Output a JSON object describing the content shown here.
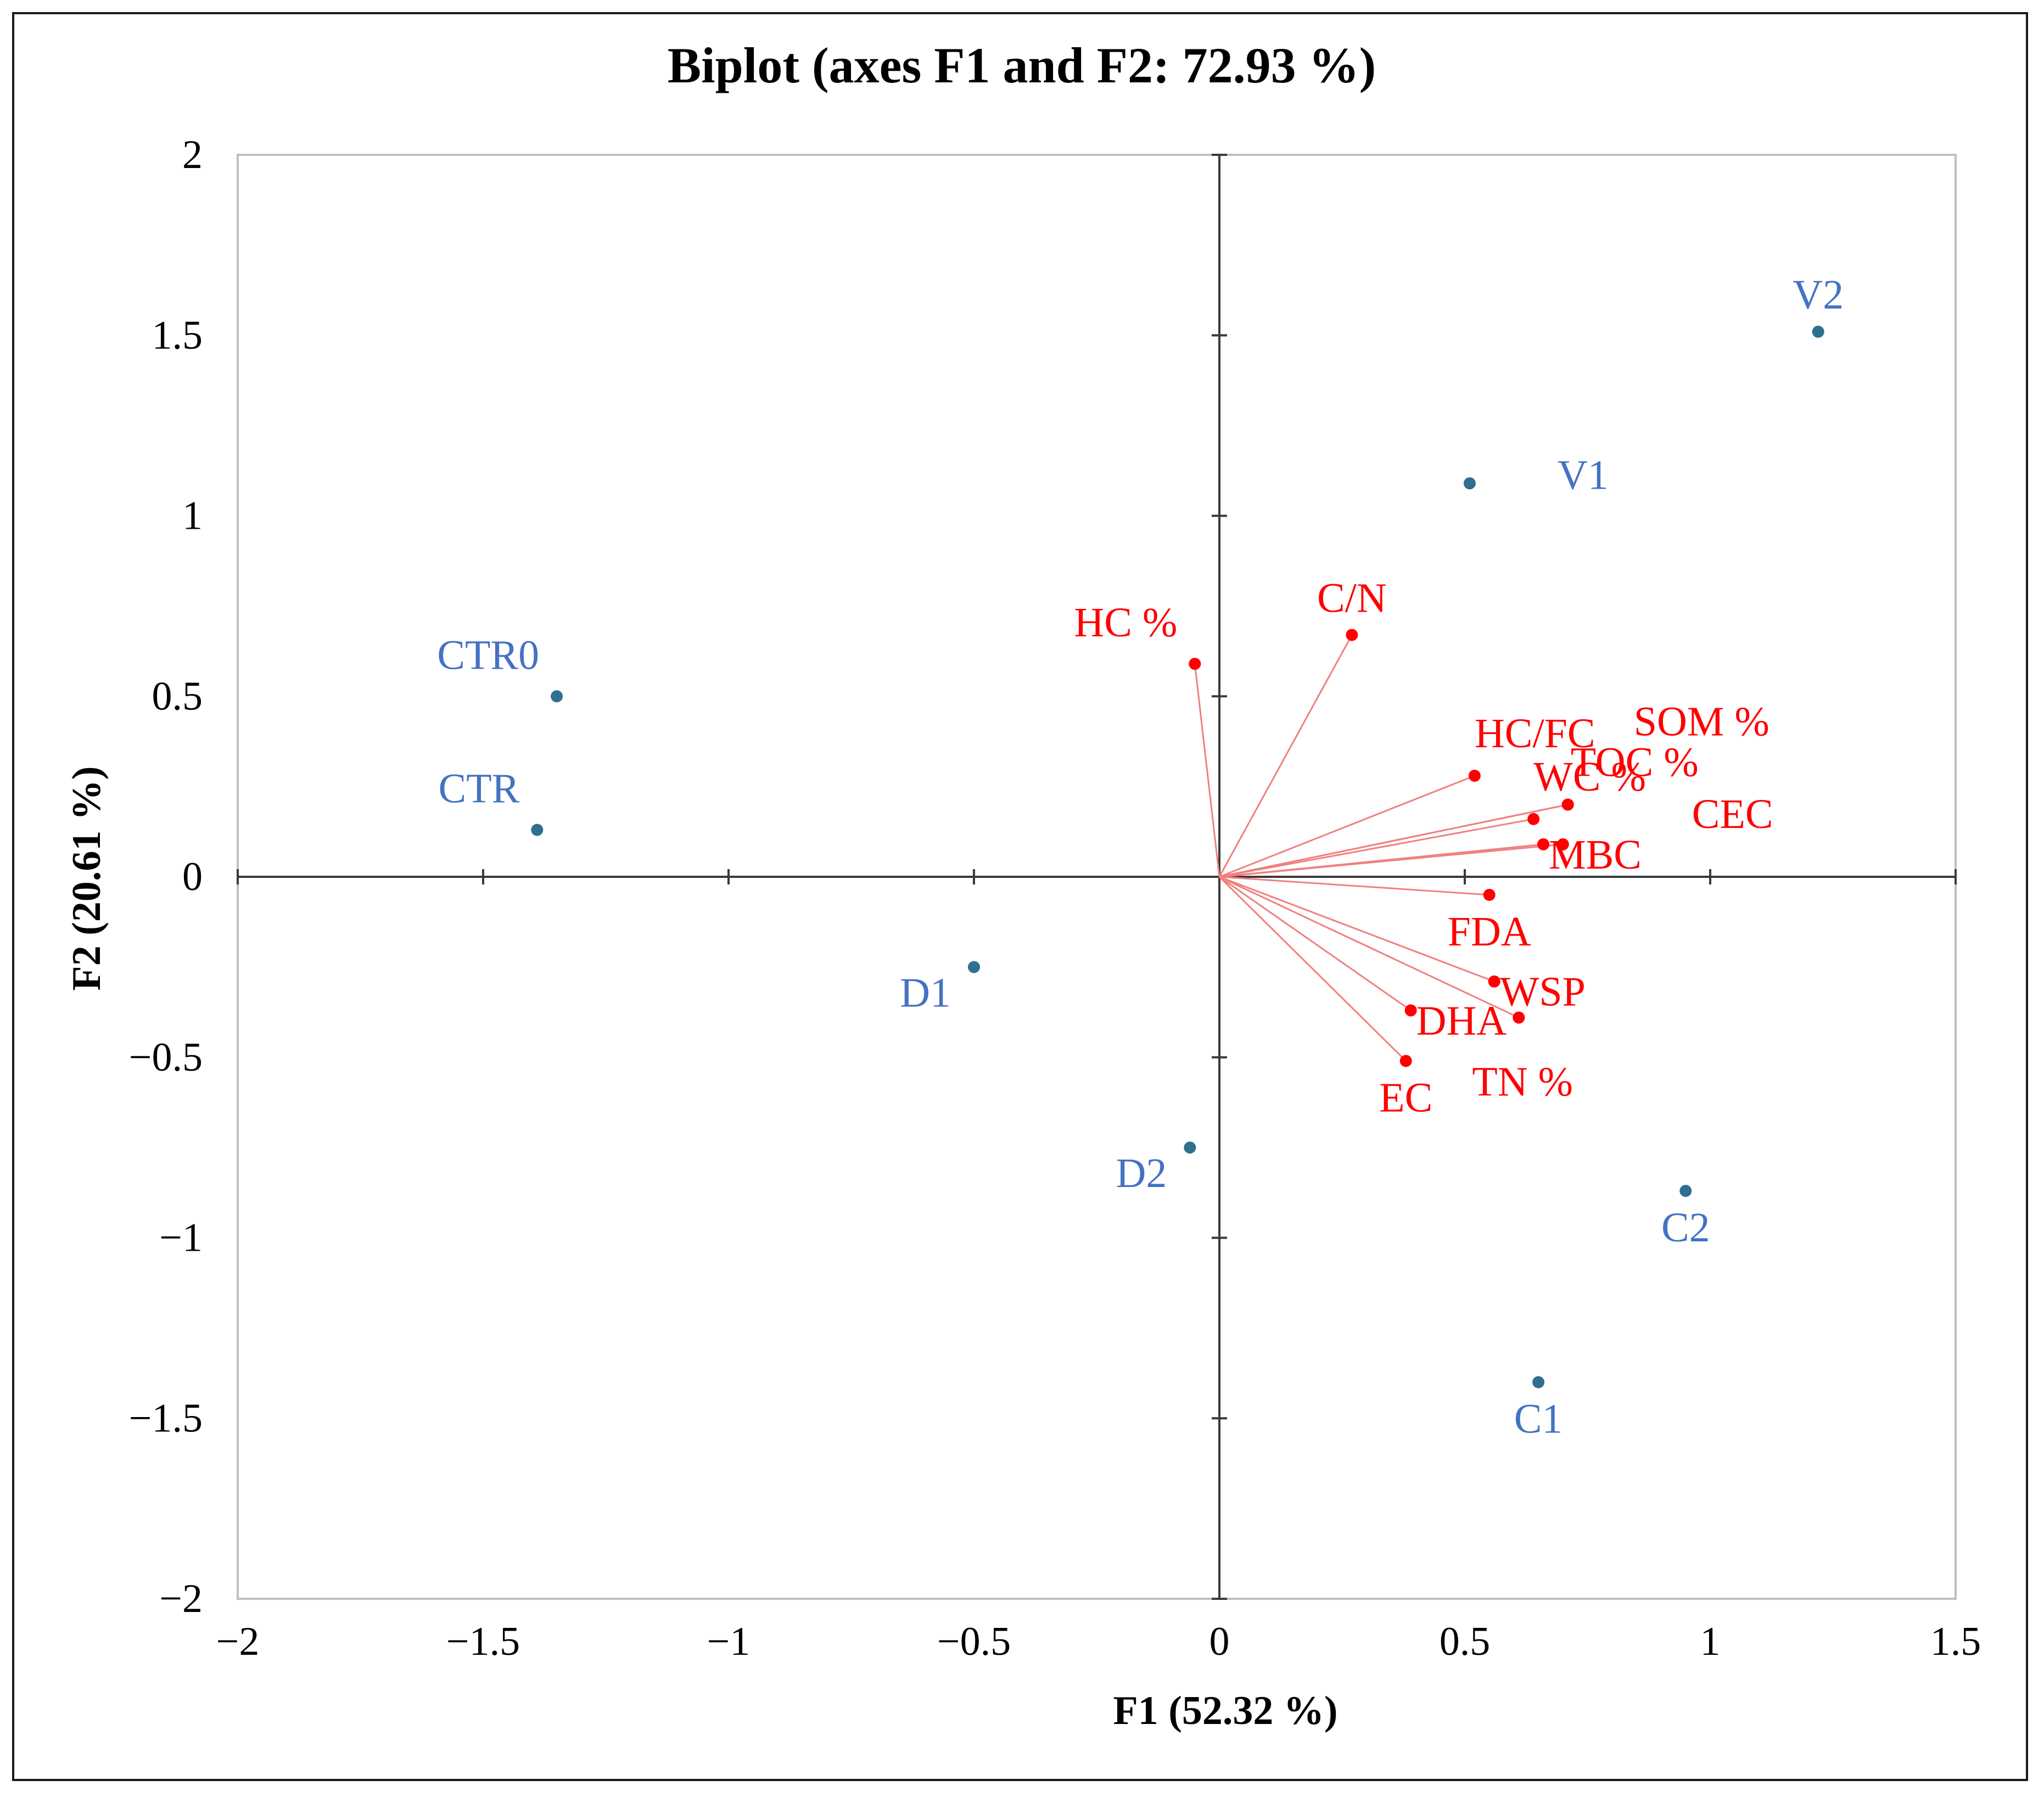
{
  "chart_data": {
    "type": "scatter",
    "title": "Biplot (axes F1 and F2: 72.93 %)",
    "xlabel": "F1 (52.32 %)",
    "ylabel": "F2 (20.61 %)",
    "xlim": [
      -2,
      1.5
    ],
    "ylim": [
      -2,
      2
    ],
    "xticks": [
      {
        "value": -2,
        "label": "−2"
      },
      {
        "value": -1.5,
        "label": "−1.5"
      },
      {
        "value": -1,
        "label": "−1"
      },
      {
        "value": -0.5,
        "label": "−0.5"
      },
      {
        "value": 0,
        "label": "0"
      },
      {
        "value": 0.5,
        "label": "0.5"
      },
      {
        "value": 1,
        "label": "1"
      },
      {
        "value": 1.5,
        "label": "1.5"
      }
    ],
    "yticks": [
      {
        "value": -2,
        "label": "−2"
      },
      {
        "value": -1.5,
        "label": "−1.5"
      },
      {
        "value": -1,
        "label": "−1"
      },
      {
        "value": -0.5,
        "label": "−0.5"
      },
      {
        "value": 0,
        "label": "0"
      },
      {
        "value": 0.5,
        "label": "0.5"
      },
      {
        "value": 1,
        "label": "1"
      },
      {
        "value": 1.5,
        "label": "1.5"
      },
      {
        "value": 2,
        "label": "2"
      }
    ],
    "grid": false,
    "series": [
      {
        "name": "observations",
        "color": "#2f6f8f",
        "label_color": "#4472c4",
        "points": [
          {
            "label": "CTR0",
            "x": -1.35,
            "y": 0.5,
            "label_anchor": "above-left"
          },
          {
            "label": "CTR",
            "x": -1.39,
            "y": 0.13,
            "label_anchor": "above-left"
          },
          {
            "label": "D1",
            "x": -0.5,
            "y": -0.25,
            "label_anchor": "below-left"
          },
          {
            "label": "D2",
            "x": -0.06,
            "y": -0.75,
            "label_anchor": "below-left"
          },
          {
            "label": "V1",
            "x": 0.51,
            "y": 1.09,
            "label_anchor": "right"
          },
          {
            "label": "V2",
            "x": 1.22,
            "y": 1.51,
            "label_anchor": "above"
          },
          {
            "label": "C1",
            "x": 0.65,
            "y": -1.4,
            "label_anchor": "below"
          },
          {
            "label": "C2",
            "x": 0.95,
            "y": -0.87,
            "label_anchor": "below"
          }
        ]
      },
      {
        "name": "variables",
        "color": "#ff0000",
        "line_color": "#f08080",
        "vectors": [
          {
            "label": "HC %",
            "x": -0.05,
            "y": 0.59,
            "label_anchor": "above-left"
          },
          {
            "label": "C/N",
            "x": 0.27,
            "y": 0.67,
            "label_anchor": "above"
          },
          {
            "label": "HC/FC",
            "x": 0.52,
            "y": 0.28,
            "label_anchor": "above-right"
          },
          {
            "label": "SOM %",
            "x": 0.71,
            "y": 0.2,
            "label_anchor": "far-above-right"
          },
          {
            "label": "TOC %",
            "x": 0.71,
            "y": 0.2,
            "label_anchor": "mid-above-right"
          },
          {
            "label": "WC %",
            "x": 0.64,
            "y": 0.16,
            "label_anchor": "above-right"
          },
          {
            "label": "CEC",
            "x": 0.7,
            "y": 0.09,
            "label_anchor": "far-right"
          },
          {
            "label": "MBC",
            "x": 0.66,
            "y": 0.09,
            "label_anchor": "below-right"
          },
          {
            "label": "FDA",
            "x": 0.55,
            "y": -0.05,
            "label_anchor": "below"
          },
          {
            "label": "WSP",
            "x": 0.56,
            "y": -0.29,
            "label_anchor": "below-right"
          },
          {
            "label": "DHA",
            "x": 0.39,
            "y": -0.37,
            "label_anchor": "below-right"
          },
          {
            "label": "TN %",
            "x": 0.61,
            "y": -0.39,
            "label_anchor": "far-below-right"
          },
          {
            "label": "EC",
            "x": 0.38,
            "y": -0.51,
            "label_anchor": "below"
          }
        ]
      }
    ]
  }
}
